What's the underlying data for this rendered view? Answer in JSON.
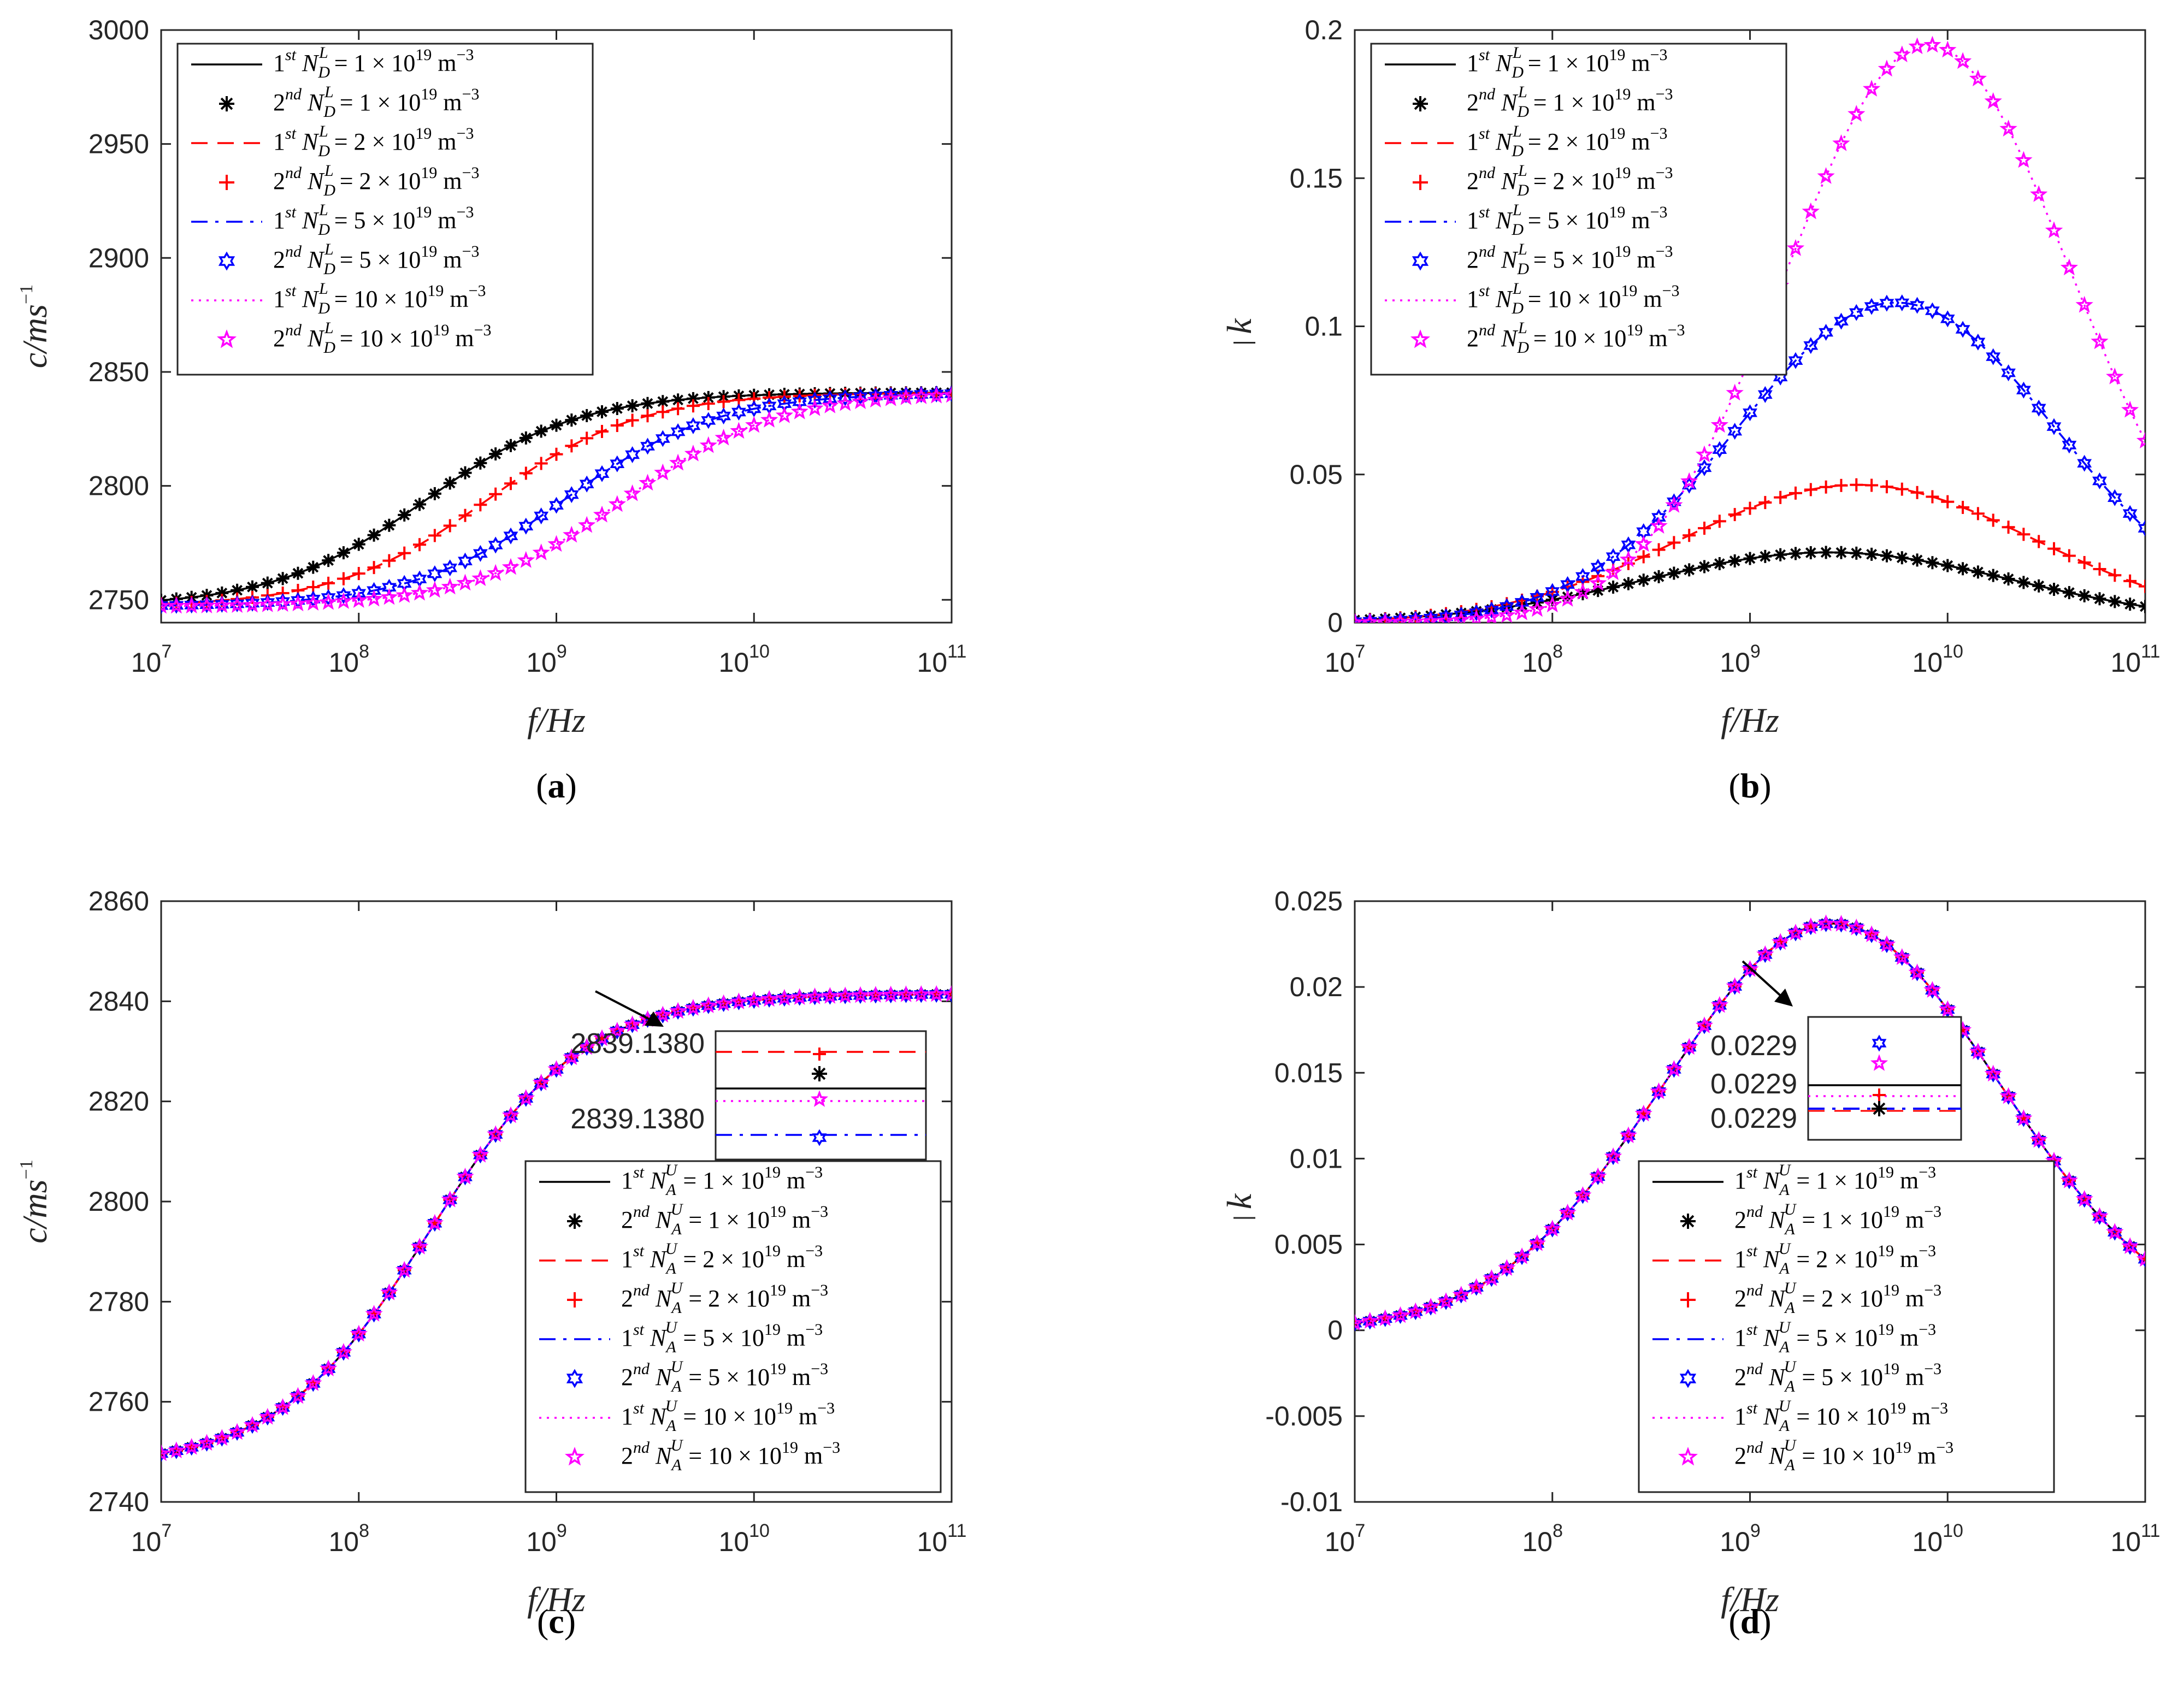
{
  "chart_data": [
    {
      "panel": "a",
      "type": "line",
      "caption": "a",
      "xlabel": "f/Hz",
      "ylabel": "c/ms",
      "ylabel_sup": "−1",
      "xscale": "log",
      "xlim": [
        10000000.0,
        100000000000.0
      ],
      "ylim": [
        2740,
        3000
      ],
      "xticks": [
        "10",
        "10",
        "10",
        "10",
        "10"
      ],
      "xtick_exps": [
        "7",
        "8",
        "9",
        "10",
        "11"
      ],
      "yticks": [
        "2750",
        "2800",
        "2850",
        "2900",
        "2950",
        "3000"
      ],
      "legend_position": "top-left",
      "legend": [
        {
          "pre": "1",
          "sup": "st",
          "body": " N",
          "sub": "D",
          "subsup": "L",
          "rest": " = 1 × 10",
          "exp": "19",
          "unit": " m",
          "unitexp": "−3"
        },
        {
          "pre": "2",
          "sup": "nd",
          "body": " N",
          "sub": "D",
          "subsup": "L",
          "rest": " = 1 × 10",
          "exp": "19",
          "unit": " m",
          "unitexp": "−3"
        },
        {
          "pre": "1",
          "sup": "st",
          "body": " N",
          "sub": "D",
          "subsup": "L",
          "rest": " = 2 × 10",
          "exp": "19",
          "unit": " m",
          "unitexp": "−3"
        },
        {
          "pre": "2",
          "sup": "nd",
          "body": " N",
          "sub": "D",
          "subsup": "L",
          "rest": " = 2 × 10",
          "exp": "19",
          "unit": " m",
          "unitexp": "−3"
        },
        {
          "pre": "1",
          "sup": "st",
          "body": " N",
          "sub": "D",
          "subsup": "L",
          "rest": " = 5 × 10",
          "exp": "19",
          "unit": " m",
          "unitexp": "−3"
        },
        {
          "pre": "2",
          "sup": "nd",
          "body": " N",
          "sub": "D",
          "subsup": "L",
          "rest": " = 5 × 10",
          "exp": "19",
          "unit": " m",
          "unitexp": "−3"
        },
        {
          "pre": "1",
          "sup": "st",
          "body": " N",
          "sub": "D",
          "subsup": "L",
          "rest": " = 10 × 10",
          "exp": "19",
          "unit": " m",
          "unitexp": "−3"
        },
        {
          "pre": "2",
          "sup": "nd",
          "body": " N",
          "sub": "D",
          "subsup": "L",
          "rest": " = 10 × 10",
          "exp": "19",
          "unit": " m",
          "unitexp": "−3"
        }
      ],
      "series": [
        {
          "color": "#000000",
          "style": "solid",
          "marker": "asterisk",
          "c0": 2747,
          "c1": 2841,
          "f0": 220000000.0
        },
        {
          "color": "#ff0000",
          "style": "dashed",
          "marker": "plus",
          "c0": 2747,
          "c1": 2841,
          "f0": 450000000.0
        },
        {
          "color": "#0000ff",
          "style": "dashdot",
          "marker": "hexagram",
          "c0": 2747,
          "c1": 2841,
          "f0": 1100000000.0
        },
        {
          "color": "#ff00ff",
          "style": "dotted",
          "marker": "pentagram",
          "c0": 2747,
          "c1": 2841,
          "f0": 2200000000.0
        }
      ]
    },
    {
      "panel": "b",
      "type": "line",
      "caption": "b",
      "xlabel": "f/Hz",
      "ylabel": "k",
      "xscale": "log",
      "xlim": [
        10000000.0,
        100000000000.0
      ],
      "ylim": [
        0,
        0.2
      ],
      "xticks": [
        "10",
        "10",
        "10",
        "10",
        "10"
      ],
      "xtick_exps": [
        "7",
        "8",
        "9",
        "10",
        "11"
      ],
      "yticks": [
        "0",
        "0.05",
        "0.1",
        "0.15",
        "0.2"
      ],
      "legend_position": "top-left",
      "legend": [
        {
          "pre": "1",
          "sup": "st",
          "body": " N",
          "sub": "D",
          "subsup": "L",
          "rest": " = 1 × 10",
          "exp": "19",
          "unit": " m",
          "unitexp": "−3"
        },
        {
          "pre": "2",
          "sup": "nd",
          "body": " N",
          "sub": "D",
          "subsup": "L",
          "rest": " = 1 × 10",
          "exp": "19",
          "unit": " m",
          "unitexp": "−3"
        },
        {
          "pre": "1",
          "sup": "st",
          "body": " N",
          "sub": "D",
          "subsup": "L",
          "rest": " = 2 × 10",
          "exp": "19",
          "unit": " m",
          "unitexp": "−3"
        },
        {
          "pre": "2",
          "sup": "nd",
          "body": " N",
          "sub": "D",
          "subsup": "L",
          "rest": " = 2 × 10",
          "exp": "19",
          "unit": " m",
          "unitexp": "−3"
        },
        {
          "pre": "1",
          "sup": "st",
          "body": " N",
          "sub": "D",
          "subsup": "L",
          "rest": " = 5 × 10",
          "exp": "19",
          "unit": " m",
          "unitexp": "−3"
        },
        {
          "pre": "2",
          "sup": "nd",
          "body": " N",
          "sub": "D",
          "subsup": "L",
          "rest": " = 5 × 10",
          "exp": "19",
          "unit": " m",
          "unitexp": "−3"
        },
        {
          "pre": "1",
          "sup": "st",
          "body": " N",
          "sub": "D",
          "subsup": "L",
          "rest": " = 10 × 10",
          "exp": "19",
          "unit": " m",
          "unitexp": "−3"
        },
        {
          "pre": "2",
          "sup": "nd",
          "body": " N",
          "sub": "D",
          "subsup": "L",
          "rest": " = 10 × 10",
          "exp": "19",
          "unit": " m",
          "unitexp": "−3"
        }
      ],
      "series": [
        {
          "color": "#000000",
          "style": "solid",
          "marker": "asterisk",
          "peak": 0.0237,
          "fpeak": 2500000000.0,
          "width": 2.2
        },
        {
          "color": "#ff0000",
          "style": "dashed",
          "marker": "plus",
          "peak": 0.0465,
          "fpeak": 3500000000.0,
          "width": 2.1
        },
        {
          "color": "#0000ff",
          "style": "dashdot",
          "marker": "hexagram",
          "peak": 0.108,
          "fpeak": 5500000000.0,
          "width": 1.9
        },
        {
          "color": "#ff00ff",
          "style": "dotted",
          "marker": "pentagram",
          "peak": 0.195,
          "fpeak": 8000000000.0,
          "width": 1.7
        }
      ]
    },
    {
      "panel": "c",
      "type": "line",
      "caption": "c",
      "xlabel": "f/Hz",
      "ylabel": "c/ms",
      "ylabel_sup": "−1",
      "xscale": "log",
      "xlim": [
        10000000.0,
        100000000000.0
      ],
      "ylim": [
        2740,
        2860
      ],
      "xticks": [
        "10",
        "10",
        "10",
        "10",
        "10"
      ],
      "xtick_exps": [
        "7",
        "8",
        "9",
        "10",
        "11"
      ],
      "yticks": [
        "2740",
        "2760",
        "2780",
        "2800",
        "2820",
        "2840",
        "2860"
      ],
      "legend_position": "bottom-right",
      "inset_labels": [
        "2839.1380",
        "2839.1380"
      ],
      "legend": [
        {
          "pre": "1",
          "sup": "st",
          "body": " N",
          "sub": "A",
          "subsup": "U",
          "rest": " = 1 × 10",
          "exp": "19",
          "unit": " m",
          "unitexp": "−3"
        },
        {
          "pre": "2",
          "sup": "nd",
          "body": " N",
          "sub": "A",
          "subsup": "U",
          "rest": " = 1 × 10",
          "exp": "19",
          "unit": " m",
          "unitexp": "−3"
        },
        {
          "pre": "1",
          "sup": "st",
          "body": " N",
          "sub": "A",
          "subsup": "U",
          "rest": " = 2 × 10",
          "exp": "19",
          "unit": " m",
          "unitexp": "−3"
        },
        {
          "pre": "2",
          "sup": "nd",
          "body": " N",
          "sub": "A",
          "subsup": "U",
          "rest": " = 2 × 10",
          "exp": "19",
          "unit": " m",
          "unitexp": "−3"
        },
        {
          "pre": "1",
          "sup": "st",
          "body": " N",
          "sub": "A",
          "subsup": "U",
          "rest": " = 5 × 10",
          "exp": "19",
          "unit": " m",
          "unitexp": "−3"
        },
        {
          "pre": "2",
          "sup": "nd",
          "body": " N",
          "sub": "A",
          "subsup": "U",
          "rest": " = 5 × 10",
          "exp": "19",
          "unit": " m",
          "unitexp": "−3"
        },
        {
          "pre": "1",
          "sup": "st",
          "body": " N",
          "sub": "A",
          "subsup": "U",
          "rest": " = 10 × 10",
          "exp": "19",
          "unit": " m",
          "unitexp": "−3"
        },
        {
          "pre": "2",
          "sup": "nd",
          "body": " N",
          "sub": "A",
          "subsup": "U",
          "rest": " = 10 × 10",
          "exp": "19",
          "unit": " m",
          "unitexp": "−3"
        }
      ],
      "series": [
        {
          "color": "#000000",
          "style": "solid",
          "marker": "asterisk",
          "c0": 2747,
          "c1": 2841.5,
          "f0": 230000000.0
        },
        {
          "color": "#ff0000",
          "style": "dashed",
          "marker": "plus",
          "c0": 2747,
          "c1": 2841.5,
          "f0": 230000000.0
        },
        {
          "color": "#0000ff",
          "style": "dashdot",
          "marker": "hexagram",
          "c0": 2747,
          "c1": 2841.5,
          "f0": 230000000.0
        },
        {
          "color": "#ff00ff",
          "style": "dotted",
          "marker": "pentagram",
          "c0": 2747,
          "c1": 2841.5,
          "f0": 230000000.0
        }
      ]
    },
    {
      "panel": "d",
      "type": "line",
      "caption": "d",
      "xlabel": "f/Hz",
      "ylabel": "k",
      "xscale": "log",
      "xlim": [
        10000000.0,
        100000000000.0
      ],
      "ylim": [
        -0.01,
        0.025
      ],
      "xticks": [
        "10",
        "10",
        "10",
        "10",
        "10"
      ],
      "xtick_exps": [
        "7",
        "8",
        "9",
        "10",
        "11"
      ],
      "yticks": [
        "-0.01",
        "-0.005",
        "0",
        "0.005",
        "0.01",
        "0.015",
        "0.02",
        "0.025"
      ],
      "legend_position": "bottom-center",
      "inset_labels": [
        "0.0229",
        "0.0229",
        "0.0229"
      ],
      "legend": [
        {
          "pre": "1",
          "sup": "st",
          "body": " N",
          "sub": "A",
          "subsup": "U",
          "rest": " = 1 × 10",
          "exp": "19",
          "unit": " m",
          "unitexp": "−3"
        },
        {
          "pre": "2",
          "sup": "nd",
          "body": " N",
          "sub": "A",
          "subsup": "U",
          "rest": " = 1 × 10",
          "exp": "19",
          "unit": " m",
          "unitexp": "−3"
        },
        {
          "pre": "1",
          "sup": "st",
          "body": " N",
          "sub": "A",
          "subsup": "U",
          "rest": " = 2 × 10",
          "exp": "19",
          "unit": " m",
          "unitexp": "−3"
        },
        {
          "pre": "2",
          "sup": "nd",
          "body": " N",
          "sub": "A",
          "subsup": "U",
          "rest": " = 2 × 10",
          "exp": "19",
          "unit": " m",
          "unitexp": "−3"
        },
        {
          "pre": "1",
          "sup": "st",
          "body": " N",
          "sub": "A",
          "subsup": "U",
          "rest": " = 5 × 10",
          "exp": "19",
          "unit": " m",
          "unitexp": "−3"
        },
        {
          "pre": "2",
          "sup": "nd",
          "body": " N",
          "sub": "A",
          "subsup": "U",
          "rest": " = 5 × 10",
          "exp": "19",
          "unit": " m",
          "unitexp": "−3"
        },
        {
          "pre": "1",
          "sup": "st",
          "body": " N",
          "sub": "A",
          "subsup": "U",
          "rest": " = 10 × 10",
          "exp": "19",
          "unit": " m",
          "unitexp": "−3"
        },
        {
          "pre": "2",
          "sup": "nd",
          "body": " N",
          "sub": "A",
          "subsup": "U",
          "rest": " = 10 × 10",
          "exp": "19",
          "unit": " m",
          "unitexp": "−3"
        }
      ],
      "series": [
        {
          "color": "#000000",
          "style": "solid",
          "marker": "asterisk",
          "peak": 0.0237,
          "fpeak": 2600000000.0,
          "width": 2.0
        },
        {
          "color": "#ff0000",
          "style": "dashed",
          "marker": "plus",
          "peak": 0.0237,
          "fpeak": 2600000000.0,
          "width": 2.0
        },
        {
          "color": "#0000ff",
          "style": "dashdot",
          "marker": "hexagram",
          "peak": 0.0237,
          "fpeak": 2600000000.0,
          "width": 2.0
        },
        {
          "color": "#ff00ff",
          "style": "dotted",
          "marker": "pentagram",
          "peak": 0.0237,
          "fpeak": 2600000000.0,
          "width": 2.0
        }
      ]
    }
  ]
}
